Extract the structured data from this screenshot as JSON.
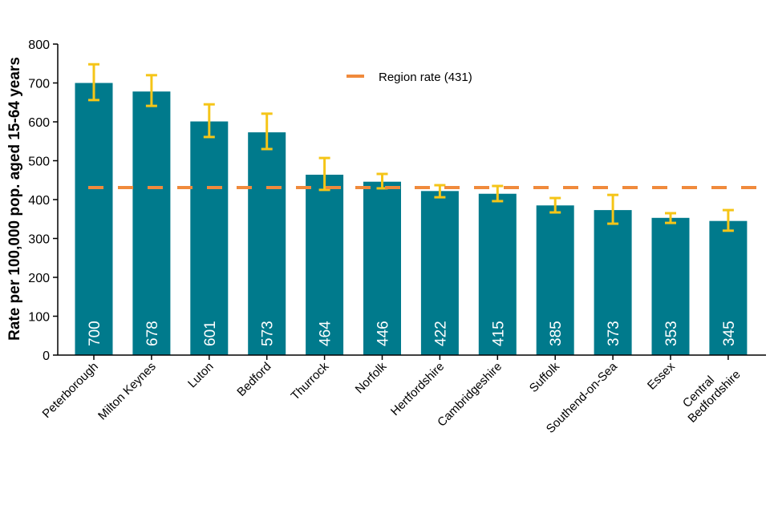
{
  "chart_data": {
    "type": "bar",
    "title": "",
    "xlabel": "",
    "ylabel": "Rate per 100,000 pop. aged 15-64 years",
    "ylim": [
      0,
      800
    ],
    "yticks": [
      0,
      100,
      200,
      300,
      400,
      500,
      600,
      700,
      800
    ],
    "categories": [
      "Peterborough",
      "Milton Keynes",
      "Luton",
      "Bedford",
      "Thurrock",
      "Norfolk",
      "Hertfordshire",
      "Cambridgeshire",
      "Suffolk",
      "Southend-on-Sea",
      "Essex",
      "Central Bedfordshire"
    ],
    "category_lines": [
      [
        "Peterborough"
      ],
      [
        "Milton Keynes"
      ],
      [
        "Luton"
      ],
      [
        "Bedford"
      ],
      [
        "Thurrock"
      ],
      [
        "Norfolk"
      ],
      [
        "Hertfordshire"
      ],
      [
        "Cambridgeshire"
      ],
      [
        "Suffolk"
      ],
      [
        "Southend-on-Sea"
      ],
      [
        "Essex"
      ],
      [
        "Central",
        "Bedfordshire"
      ]
    ],
    "values": [
      700,
      678,
      601,
      573,
      464,
      446,
      422,
      415,
      385,
      373,
      353,
      345
    ],
    "ci_upper": [
      748,
      720,
      645,
      621,
      507,
      466,
      437,
      435,
      404,
      412,
      365,
      373
    ],
    "ci_lower": [
      656,
      641,
      561,
      530,
      425,
      429,
      406,
      396,
      367,
      338,
      340,
      320
    ],
    "reference_line": {
      "label": "Region rate (431)",
      "value": 431
    },
    "legend_position": "top-center",
    "grid": false,
    "colors": {
      "bar": "#007A8C",
      "error": "#F5C518",
      "reference": "#F08A3C",
      "label": "#ffffff"
    }
  }
}
